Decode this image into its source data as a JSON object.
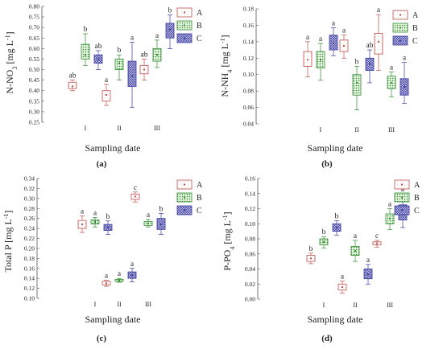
{
  "colors": {
    "A": "#c0504d",
    "B": "#2e8b2e",
    "C": "#3a3aa0"
  },
  "chart_data": [
    {
      "type": "boxplot",
      "panel_label": "(a)",
      "ylabel": "N-NO3 [mg L-1]",
      "ylabel_main": "N-NO",
      "ylabel_sub": "3",
      "ylabel_unit": " [mg L",
      "ylabel_sup": "-1",
      "ylabel_end": "]",
      "xlabel": "Sampling date",
      "categories": [
        "I",
        "II",
        "III"
      ],
      "ylim": [
        0.25,
        0.8
      ],
      "yticks": [
        0.25,
        0.3,
        0.35,
        0.4,
        0.45,
        0.5,
        0.55,
        0.6,
        0.65,
        0.7,
        0.75,
        0.8
      ],
      "tick_decimals": 2,
      "legend": [
        "A",
        "B",
        "C"
      ],
      "series": [
        {
          "name": "A",
          "boxes": [
            {
              "min": 0.4,
              "q1": 0.41,
              "median": 0.42,
              "q3": 0.44,
              "max": 0.45,
              "label": "ab"
            },
            {
              "min": 0.33,
              "q1": 0.35,
              "median": 0.38,
              "q3": 0.4,
              "max": 0.43,
              "label": "a"
            },
            {
              "min": 0.45,
              "q1": 0.48,
              "median": 0.5,
              "q3": 0.52,
              "max": 0.55,
              "label": "ab"
            }
          ]
        },
        {
          "name": "B",
          "boxes": [
            {
              "min": 0.52,
              "q1": 0.55,
              "median": 0.57,
              "q3": 0.62,
              "max": 0.67,
              "label": "b"
            },
            {
              "min": 0.45,
              "q1": 0.5,
              "median": 0.53,
              "q3": 0.55,
              "max": 0.57,
              "label": "b"
            },
            {
              "min": 0.51,
              "q1": 0.54,
              "median": 0.57,
              "q3": 0.6,
              "max": 0.64,
              "label": "a"
            }
          ]
        },
        {
          "name": "C",
          "boxes": [
            {
              "min": 0.5,
              "q1": 0.53,
              "median": 0.55,
              "q3": 0.57,
              "max": 0.59,
              "label": "ab"
            },
            {
              "min": 0.32,
              "q1": 0.42,
              "median": 0.47,
              "q3": 0.54,
              "max": 0.63,
              "label": "a"
            },
            {
              "min": 0.6,
              "q1": 0.65,
              "median": 0.69,
              "q3": 0.72,
              "max": 0.76,
              "label": "b"
            }
          ]
        }
      ]
    },
    {
      "type": "boxplot",
      "panel_label": "(b)",
      "ylabel": "N-NH4 [mg L-1]",
      "ylabel_main": "N-NH",
      "ylabel_sub": "4",
      "ylabel_unit": " [mg L",
      "ylabel_sup": "-1",
      "ylabel_end": "]",
      "xlabel": "Sampling date",
      "categories": [
        "I",
        "II",
        "III"
      ],
      "ylim": [
        0.04,
        0.18
      ],
      "yticks": [
        0.04,
        0.06,
        0.08,
        0.1,
        0.12,
        0.14,
        0.16,
        0.18
      ],
      "tick_decimals": 2,
      "legend": [
        "A",
        "B",
        "C"
      ],
      "series": [
        {
          "name": "A",
          "boxes": [
            {
              "min": 0.097,
              "q1": 0.11,
              "median": 0.118,
              "q3": 0.128,
              "max": 0.14,
              "label": "a"
            },
            {
              "min": 0.12,
              "q1": 0.128,
              "median": 0.135,
              "q3": 0.142,
              "max": 0.148,
              "label": "a"
            },
            {
              "min": 0.105,
              "q1": 0.125,
              "median": 0.14,
              "q3": 0.15,
              "max": 0.173,
              "label": "a"
            }
          ]
        },
        {
          "name": "B",
          "boxes": [
            {
              "min": 0.093,
              "q1": 0.108,
              "median": 0.118,
              "q3": 0.128,
              "max": 0.138,
              "label": "a"
            },
            {
              "min": 0.057,
              "q1": 0.075,
              "median": 0.09,
              "q3": 0.1,
              "max": 0.11,
              "label": "b"
            },
            {
              "min": 0.073,
              "q1": 0.083,
              "median": 0.09,
              "q3": 0.098,
              "max": 0.103,
              "label": "a"
            }
          ]
        },
        {
          "name": "C",
          "boxes": [
            {
              "min": 0.123,
              "q1": 0.13,
              "median": 0.138,
              "q3": 0.148,
              "max": 0.157,
              "label": "a"
            },
            {
              "min": 0.09,
              "q1": 0.105,
              "median": 0.113,
              "q3": 0.12,
              "max": 0.13,
              "label": "ab"
            },
            {
              "min": 0.065,
              "q1": 0.075,
              "median": 0.085,
              "q3": 0.095,
              "max": 0.115,
              "label": "a"
            }
          ]
        }
      ]
    },
    {
      "type": "boxplot",
      "panel_label": "(c)",
      "ylabel": "Total P [mg L-1]",
      "ylabel_main": "Total P",
      "ylabel_sub": "",
      "ylabel_unit": " [mg L",
      "ylabel_sup": "-1",
      "ylabel_end": "]",
      "xlabel": "Sampling date",
      "categories": [
        "I",
        "II",
        "III"
      ],
      "ylim": [
        0.1,
        0.34
      ],
      "yticks": [
        0.1,
        0.12,
        0.14,
        0.16,
        0.18,
        0.2,
        0.22,
        0.24,
        0.26,
        0.28,
        0.3,
        0.32,
        0.34
      ],
      "tick_decimals": 2,
      "legend": [
        "A",
        "B",
        "C"
      ],
      "series": [
        {
          "name": "A",
          "boxes": [
            {
              "min": 0.232,
              "q1": 0.24,
              "median": 0.248,
              "q3": 0.256,
              "max": 0.265,
              "label": "a"
            },
            {
              "min": 0.124,
              "q1": 0.127,
              "median": 0.13,
              "q3": 0.134,
              "max": 0.136,
              "label": "a"
            },
            {
              "min": 0.293,
              "q1": 0.298,
              "median": 0.304,
              "q3": 0.309,
              "max": 0.313,
              "label": "c"
            }
          ]
        },
        {
          "name": "B",
          "boxes": [
            {
              "min": 0.243,
              "q1": 0.249,
              "median": 0.253,
              "q3": 0.257,
              "max": 0.262,
              "label": "a"
            },
            {
              "min": 0.132,
              "q1": 0.134,
              "median": 0.136,
              "q3": 0.138,
              "max": 0.14,
              "label": "a"
            },
            {
              "min": 0.243,
              "q1": 0.246,
              "median": 0.25,
              "q3": 0.254,
              "max": 0.258,
              "label": "a"
            }
          ]
        },
        {
          "name": "C",
          "boxes": [
            {
              "min": 0.228,
              "q1": 0.236,
              "median": 0.242,
              "q3": 0.248,
              "max": 0.255,
              "label": "b"
            },
            {
              "min": 0.133,
              "q1": 0.14,
              "median": 0.146,
              "q3": 0.153,
              "max": 0.16,
              "label": "a"
            },
            {
              "min": 0.228,
              "q1": 0.238,
              "median": 0.248,
              "q3": 0.26,
              "max": 0.27,
              "label": "b"
            }
          ]
        }
      ]
    },
    {
      "type": "boxplot",
      "panel_label": "(d)",
      "ylabel": "P-PO4 [mg L-1]",
      "ylabel_main": "P-PO",
      "ylabel_sub": "4",
      "ylabel_unit": " [mg L",
      "ylabel_sup": "-1",
      "ylabel_end": "]",
      "xlabel": "Sampling date",
      "categories": [
        "I",
        "II",
        "III"
      ],
      "ylim": [
        0.0,
        0.16
      ],
      "yticks": [
        0.0,
        0.02,
        0.04,
        0.06,
        0.08,
        0.1,
        0.12,
        0.14,
        0.16
      ],
      "tick_decimals": 2,
      "legend": [
        "A",
        "B",
        "C"
      ],
      "series": [
        {
          "name": "A",
          "boxes": [
            {
              "min": 0.047,
              "q1": 0.05,
              "median": 0.054,
              "q3": 0.058,
              "max": 0.061,
              "label": "b"
            },
            {
              "min": 0.008,
              "q1": 0.012,
              "median": 0.016,
              "q3": 0.02,
              "max": 0.024,
              "label": "a"
            },
            {
              "min": 0.069,
              "q1": 0.072,
              "median": 0.074,
              "q3": 0.076,
              "max": 0.078,
              "label": "c"
            }
          ]
        },
        {
          "name": "B",
          "boxes": [
            {
              "min": 0.068,
              "q1": 0.072,
              "median": 0.076,
              "q3": 0.08,
              "max": 0.083,
              "label": "b"
            },
            {
              "min": 0.05,
              "q1": 0.058,
              "median": 0.064,
              "q3": 0.07,
              "max": 0.078,
              "label": "a"
            },
            {
              "min": 0.092,
              "q1": 0.1,
              "median": 0.107,
              "q3": 0.113,
              "max": 0.12,
              "label": "a"
            }
          ]
        },
        {
          "name": "C",
          "boxes": [
            {
              "min": 0.085,
              "q1": 0.09,
              "median": 0.095,
              "q3": 0.1,
              "max": 0.104,
              "label": "b"
            },
            {
              "min": 0.02,
              "q1": 0.027,
              "median": 0.033,
              "q3": 0.04,
              "max": 0.046,
              "label": "a"
            },
            {
              "min": 0.095,
              "q1": 0.105,
              "median": 0.113,
              "q3": 0.125,
              "max": 0.14,
              "label": "a"
            }
          ]
        }
      ]
    }
  ]
}
